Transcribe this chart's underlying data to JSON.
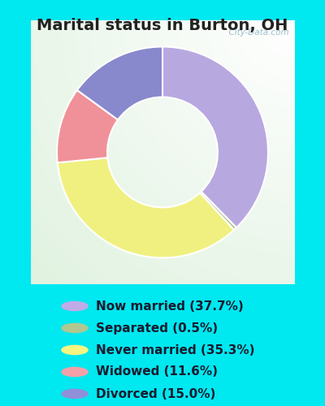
{
  "title": "Marital status in Burton, OH",
  "slices": [
    37.7,
    0.5,
    35.3,
    11.6,
    15.0
  ],
  "colors": [
    "#b8a8e0",
    "#b0c890",
    "#f0f080",
    "#f09098",
    "#8888cc"
  ],
  "labels": [
    "Now married (37.7%)",
    "Separated (0.5%)",
    "Never married (35.3%)",
    "Widowed (11.6%)",
    "Divorced (15.0%)"
  ],
  "legend_colors": [
    "#c0aae8",
    "#b0c890",
    "#f5f580",
    "#f5a0a8",
    "#9090d8"
  ],
  "bg_cyan": "#00e8f0",
  "bg_chart_color": "#e8f5e8",
  "watermark": "  City-Data.com",
  "title_fontsize": 14,
  "donut_width": 0.42,
  "start_angle": 90,
  "legend_fontsize": 11
}
